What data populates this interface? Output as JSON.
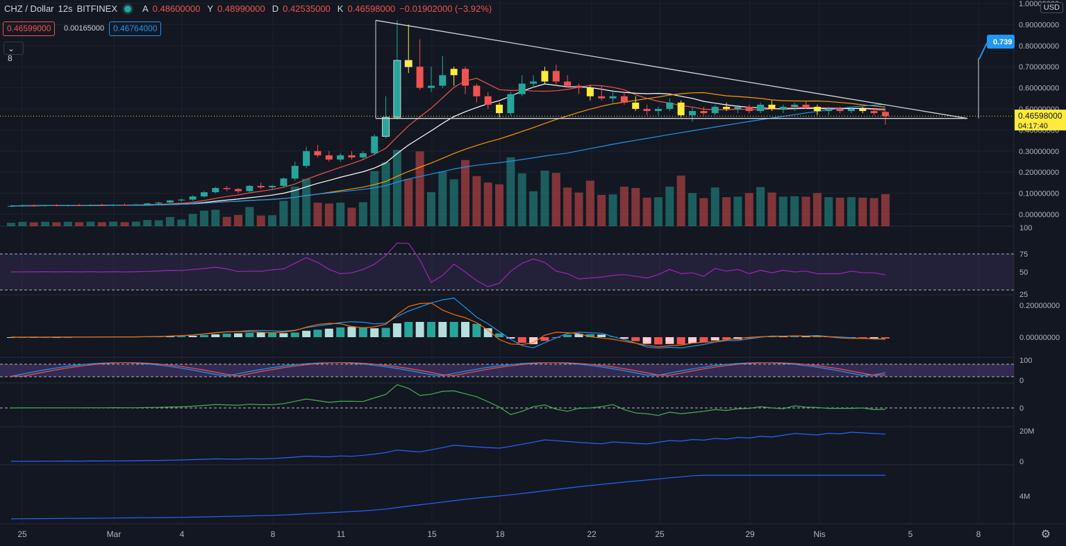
{
  "header": {
    "symbol": "CHZ / Dollar",
    "interval": "12s",
    "exchange": "BITFINEX",
    "open_label": "A",
    "open": "0.48600000",
    "high_label": "Y",
    "high": "0.48990000",
    "low_label": "D",
    "low": "0.42535000",
    "close_label": "K",
    "close": "0.46598000",
    "change": "−0.01902000 (−3.92%)"
  },
  "trade": {
    "bid": "0.46599000",
    "spread": "0.00165000",
    "ask": "0.46764000"
  },
  "indicator_toggle": "8",
  "currency_button": "USD",
  "colors": {
    "bg": "#131722",
    "up": "#26a69a",
    "down": "#ef5350",
    "highlight": "#ffeb3b",
    "rsi": "#9c27b0"
  },
  "price_axis": [
    "1.00000000",
    "0.90000000",
    "0.80000000",
    "0.70000000",
    "0.60000000",
    "0.50000000",
    "0.40000000",
    "0.30000000",
    "0.20000000",
    "0.10000000",
    "0.00000000"
  ],
  "last_price": {
    "value": "0.46598000",
    "countdown": "04:17:40"
  },
  "alert_label": "0.739",
  "rsi_axis": [
    "100",
    "75",
    "50",
    "25"
  ],
  "macd_axis": [
    "0.20000000",
    "0.00000000"
  ],
  "stoch_axis": [
    "100",
    "0"
  ],
  "mom_axis": [
    "0"
  ],
  "obv_axis": [
    "20M",
    "0"
  ],
  "vol_axis": [
    "4M"
  ],
  "time_axis": [
    "25",
    "Mar",
    "4",
    "8",
    "11",
    "15",
    "18",
    "22",
    "25",
    "29",
    "Nis",
    "5",
    "8"
  ],
  "chart_data": {
    "type": "candlestick",
    "instrument": "CHZ / Dollar",
    "candles": [
      [
        0.04,
        0.045,
        0.035,
        0.04
      ],
      [
        0.04,
        0.046,
        0.036,
        0.042
      ],
      [
        0.042,
        0.047,
        0.037,
        0.041
      ],
      [
        0.041,
        0.046,
        0.036,
        0.043
      ],
      [
        0.043,
        0.048,
        0.038,
        0.042
      ],
      [
        0.042,
        0.047,
        0.037,
        0.044
      ],
      [
        0.044,
        0.049,
        0.039,
        0.043
      ],
      [
        0.043,
        0.048,
        0.038,
        0.045
      ],
      [
        0.045,
        0.05,
        0.04,
        0.044
      ],
      [
        0.044,
        0.049,
        0.039,
        0.046
      ],
      [
        0.046,
        0.051,
        0.041,
        0.045
      ],
      [
        0.045,
        0.05,
        0.04,
        0.047
      ],
      [
        0.047,
        0.055,
        0.043,
        0.052
      ],
      [
        0.052,
        0.06,
        0.048,
        0.056
      ],
      [
        0.056,
        0.07,
        0.052,
        0.066
      ],
      [
        0.066,
        0.075,
        0.06,
        0.07
      ],
      [
        0.07,
        0.09,
        0.065,
        0.085
      ],
      [
        0.085,
        0.11,
        0.08,
        0.105
      ],
      [
        0.105,
        0.13,
        0.1,
        0.125
      ],
      [
        0.125,
        0.135,
        0.11,
        0.12
      ],
      [
        0.12,
        0.125,
        0.1,
        0.11
      ],
      [
        0.11,
        0.14,
        0.105,
        0.135
      ],
      [
        0.135,
        0.15,
        0.12,
        0.128
      ],
      [
        0.128,
        0.14,
        0.115,
        0.135
      ],
      [
        0.135,
        0.175,
        0.13,
        0.17
      ],
      [
        0.17,
        0.25,
        0.16,
        0.23
      ],
      [
        0.23,
        0.32,
        0.22,
        0.3
      ],
      [
        0.3,
        0.33,
        0.27,
        0.28
      ],
      [
        0.28,
        0.3,
        0.25,
        0.26
      ],
      [
        0.26,
        0.29,
        0.25,
        0.28
      ],
      [
        0.28,
        0.3,
        0.26,
        0.27
      ],
      [
        0.27,
        0.3,
        0.26,
        0.29
      ],
      [
        0.29,
        0.38,
        0.28,
        0.37
      ],
      [
        0.37,
        0.56,
        0.36,
        0.46
      ],
      [
        0.46,
        0.92,
        0.45,
        0.73
      ],
      [
        0.73,
        0.9,
        0.67,
        0.7
      ],
      [
        0.7,
        0.83,
        0.59,
        0.6
      ],
      [
        0.6,
        0.7,
        0.58,
        0.61
      ],
      [
        0.61,
        0.75,
        0.6,
        0.66
      ],
      [
        0.66,
        0.7,
        0.61,
        0.69
      ],
      [
        0.69,
        0.7,
        0.57,
        0.61
      ],
      [
        0.61,
        0.62,
        0.53,
        0.56
      ],
      [
        0.56,
        0.58,
        0.5,
        0.52
      ],
      [
        0.52,
        0.53,
        0.46,
        0.48
      ],
      [
        0.48,
        0.58,
        0.47,
        0.57
      ],
      [
        0.57,
        0.66,
        0.56,
        0.62
      ],
      [
        0.62,
        0.66,
        0.6,
        0.63
      ],
      [
        0.63,
        0.7,
        0.62,
        0.68
      ],
      [
        0.68,
        0.71,
        0.61,
        0.63
      ],
      [
        0.63,
        0.66,
        0.6,
        0.61
      ],
      [
        0.61,
        0.62,
        0.57,
        0.6
      ],
      [
        0.6,
        0.61,
        0.54,
        0.56
      ],
      [
        0.56,
        0.61,
        0.54,
        0.55
      ],
      [
        0.55,
        0.59,
        0.53,
        0.56
      ],
      [
        0.56,
        0.58,
        0.52,
        0.53
      ],
      [
        0.53,
        0.56,
        0.49,
        0.5
      ],
      [
        0.5,
        0.52,
        0.47,
        0.49
      ],
      [
        0.49,
        0.51,
        0.47,
        0.5
      ],
      [
        0.5,
        0.55,
        0.49,
        0.53
      ],
      [
        0.53,
        0.54,
        0.46,
        0.47
      ],
      [
        0.47,
        0.51,
        0.44,
        0.49
      ],
      [
        0.49,
        0.51,
        0.47,
        0.48
      ],
      [
        0.48,
        0.52,
        0.47,
        0.51
      ],
      [
        0.51,
        0.53,
        0.49,
        0.5
      ],
      [
        0.5,
        0.52,
        0.48,
        0.51
      ],
      [
        0.51,
        0.52,
        0.48,
        0.49
      ],
      [
        0.49,
        0.53,
        0.48,
        0.52
      ],
      [
        0.52,
        0.54,
        0.49,
        0.5
      ],
      [
        0.5,
        0.52,
        0.48,
        0.51
      ],
      [
        0.51,
        0.53,
        0.49,
        0.52
      ],
      [
        0.52,
        0.54,
        0.5,
        0.51
      ],
      [
        0.51,
        0.52,
        0.47,
        0.49
      ],
      [
        0.49,
        0.51,
        0.47,
        0.5
      ],
      [
        0.5,
        0.51,
        0.48,
        0.49
      ],
      [
        0.49,
        0.51,
        0.48,
        0.5
      ],
      [
        0.5,
        0.51,
        0.48,
        0.49
      ],
      [
        0.49,
        0.5,
        0.47,
        0.48
      ],
      [
        0.486,
        0.49,
        0.425,
        0.466
      ]
    ]
  }
}
